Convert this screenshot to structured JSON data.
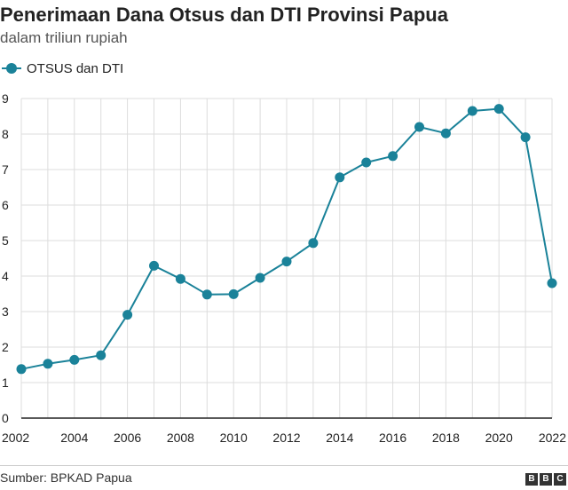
{
  "header": {
    "title": "Penerimaan Dana Otsus dan DTI Provinsi Papua",
    "subtitle": "dalam triliun rupiah"
  },
  "colors": {
    "series": "#1a8299",
    "grid": "#dddddd",
    "axis": "#222222"
  },
  "chart_data": {
    "type": "line",
    "title": "Penerimaan Dana Otsus dan DTI Provinsi Papua",
    "subtitle": "dalam triliun rupiah",
    "xlabel": "",
    "ylabel": "",
    "x": [
      2002,
      2003,
      2004,
      2005,
      2006,
      2007,
      2008,
      2009,
      2010,
      2011,
      2012,
      2013,
      2014,
      2015,
      2016,
      2017,
      2018,
      2019,
      2020,
      2021,
      2022
    ],
    "series": [
      {
        "name": "OTSUS dan DTI",
        "values": [
          1.38,
          1.53,
          1.64,
          1.77,
          2.91,
          4.29,
          3.92,
          3.48,
          3.49,
          3.95,
          4.41,
          4.93,
          6.78,
          7.2,
          7.38,
          8.2,
          8.02,
          8.65,
          8.71,
          7.91,
          3.8
        ]
      }
    ],
    "xticks": [
      2002,
      2004,
      2006,
      2008,
      2010,
      2012,
      2014,
      2016,
      2018,
      2020,
      2022
    ],
    "yticks": [
      0,
      1,
      2,
      3,
      4,
      5,
      6,
      7,
      8,
      9
    ],
    "xlim": [
      2002,
      2022
    ],
    "ylim": [
      0,
      9
    ],
    "grid": true,
    "legend": "top-left"
  },
  "legend": {
    "label": "OTSUS dan DTI"
  },
  "footer": {
    "source": "Sumber: BPKAD Papua",
    "logo": [
      "B",
      "B",
      "C"
    ]
  }
}
